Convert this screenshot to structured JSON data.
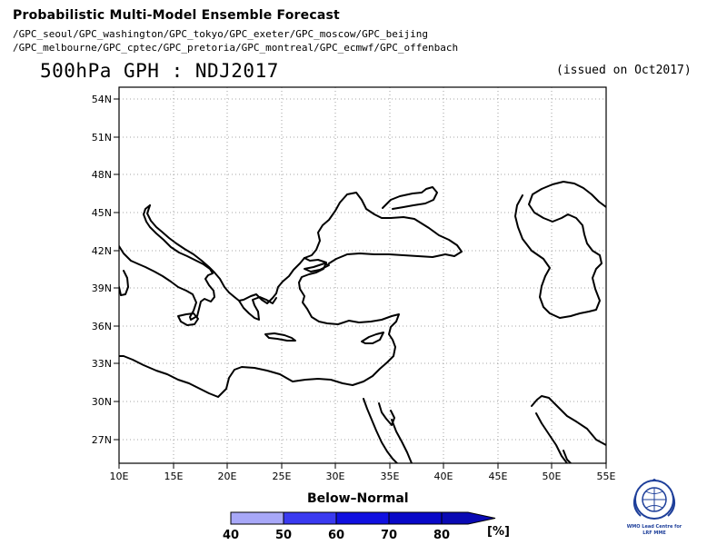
{
  "header": {
    "title": "Probabilistic Multi-Model Ensemble Forecast",
    "gpc_line1": "/GPC_seoul/GPC_washington/GPC_tokyo/GPC_exeter/GPC_moscow/GPC_beijing",
    "gpc_line2": "/GPC_melbourne/GPC_cptec/GPC_pretoria/GPC_montreal/GPC_ecmwf/GPC_offenbach",
    "main_title": "500hPa GPH : NDJ2017",
    "issued": "(issued on Oct2017)"
  },
  "map": {
    "lon_labels": [
      "10E",
      "15E",
      "20E",
      "25E",
      "30E",
      "35E",
      "40E",
      "45E",
      "50E",
      "55E"
    ],
    "lat_labels": [
      "54N",
      "51N",
      "48N",
      "45N",
      "42N",
      "39N",
      "36N",
      "33N",
      "30N",
      "27N"
    ],
    "lon_range": [
      10,
      55
    ],
    "lat_range": [
      25.5,
      55
    ],
    "grid": "dotted",
    "coastline_color": "#000000"
  },
  "legend": {
    "title": "Below–Normal",
    "ticks": [
      "40",
      "50",
      "60",
      "70",
      "80"
    ],
    "unit": "[%]",
    "colors": [
      "#a8a8f8",
      "#3a3af0",
      "#1010e0",
      "#0808c8",
      "#0a0ab4"
    ]
  },
  "logo": {
    "line1": "WMO Lead Centre for",
    "line2": "LRF MME"
  }
}
